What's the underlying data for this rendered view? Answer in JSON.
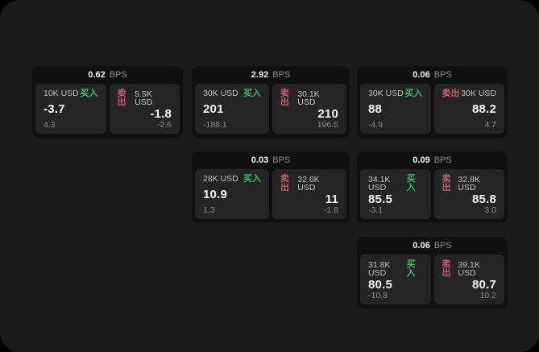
{
  "theme": {
    "background": "#000000",
    "surface": "#1a1a1a",
    "card": "#101010",
    "panel": "#242424",
    "text_primary": "#f5f5f5",
    "text_secondary": "#c3c3c3",
    "text_muted": "#8d8d8d",
    "buy_green": "#3cba6e",
    "sell_red": "#c75d6f"
  },
  "unit_label": "BPS",
  "cards": [
    {
      "bps": "0.62",
      "buy": {
        "amount": "10K USD",
        "side_label": "买入",
        "value": "-3.7",
        "sub_value": "4.3"
      },
      "sell": {
        "amount": "5.5K USD",
        "side_label": "卖出",
        "value": "-1.8",
        "sub_value": "-2.6"
      }
    },
    {
      "bps": "2.92",
      "buy": {
        "amount": "30K USD",
        "side_label": "买入",
        "value": "201",
        "sub_value": "-188.1"
      },
      "sell": {
        "amount": "30.1K USD",
        "side_label": "卖出",
        "value": "210",
        "sub_value": "196.5"
      }
    },
    {
      "bps": "0.06",
      "buy": {
        "amount": "30K USD",
        "side_label": "买入",
        "value": "88",
        "sub_value": "-4.9"
      },
      "sell": {
        "amount": "30K USD",
        "side_label": "卖出",
        "value": "88.2",
        "sub_value": "4.7"
      }
    },
    {
      "bps": "0.03",
      "buy": {
        "amount": "28K USD",
        "side_label": "买入",
        "value": "10.9",
        "sub_value": "1.3"
      },
      "sell": {
        "amount": "32.6K USD",
        "side_label": "卖出",
        "value": "11",
        "sub_value": "-1.8"
      }
    },
    {
      "bps": "0.09",
      "buy": {
        "amount": "34.1K USD",
        "side_label": "买入",
        "value": "85.5",
        "sub_value": "-3.1"
      },
      "sell": {
        "amount": "32.8K USD",
        "side_label": "卖出",
        "value": "85.8",
        "sub_value": "3.0"
      }
    },
    {
      "bps": "0.06",
      "buy": {
        "amount": "31.8K USD",
        "side_label": "买入",
        "value": "80.5",
        "sub_value": "-10.8"
      },
      "sell": {
        "amount": "39.1K USD",
        "side_label": "卖出",
        "value": "80.7",
        "sub_value": "10.2"
      }
    }
  ]
}
